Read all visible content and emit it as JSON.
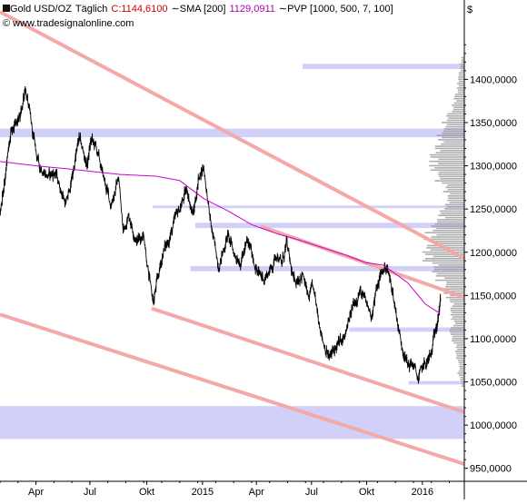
{
  "header": {
    "instrument": "Gold USD/OZ",
    "period": "Täglich",
    "price_label": "C:1144,6100",
    "sma_label": "SMA [200]",
    "sma_value": "1129,0911",
    "pvp_label": "PVP [1000, 500, 7, 100]",
    "currency": "$",
    "copyright": "© www.tradesignalonline.com"
  },
  "colors": {
    "price": "#000000",
    "sma": "#cc00cc",
    "channel": "#f4a8a8",
    "channel_dark": "#e27a7a",
    "band": "#c8c8f8",
    "profile": "#9a9a9a",
    "price_label": "#d00000"
  },
  "chart_data": {
    "type": "line",
    "title": "",
    "xlabel": "",
    "ylabel": "",
    "ylim": [
      935,
      1475
    ],
    "y_ticks": [
      "1400,0000",
      "1350,0000",
      "1300,0000",
      "1250,0000",
      "1200,0000",
      "1150,0000",
      "1100,0000",
      "1050,0000",
      "1000,0000",
      "950,0000"
    ],
    "y_tick_values": [
      1400,
      1350,
      1300,
      1250,
      1200,
      1150,
      1100,
      1050,
      1000,
      950
    ],
    "x_ticks": [
      "Apr",
      "Jul",
      "Okt",
      "2015",
      "Apr",
      "Jul",
      "Okt",
      "2016"
    ],
    "x_tick_index": [
      60,
      150,
      245,
      338,
      428,
      520,
      612,
      705
    ],
    "n_days": 775,
    "series": [
      {
        "kind": "price",
        "anchors_index": [
          0,
          18,
          34,
          42,
          55,
          65,
          80,
          92,
          110,
          118,
          132,
          145,
          152,
          160,
          172,
          185,
          198,
          205,
          215,
          228,
          240,
          248,
          256,
          265,
          272,
          282,
          296,
          300,
          312,
          322,
          333,
          340,
          350,
          356,
          365,
          372,
          380,
          392,
          402,
          412,
          418,
          430,
          442,
          455,
          462,
          470,
          478,
          490,
          505,
          515,
          522,
          530,
          540,
          550,
          560,
          575,
          590,
          600,
          608,
          620,
          628,
          636,
          645,
          655,
          668,
          680,
          690,
          698,
          705,
          712,
          720,
          728,
          735
        ],
        "anchors_value": [
          1248,
          1336,
          1356,
          1392,
          1335,
          1300,
          1288,
          1292,
          1255,
          1278,
          1332,
          1300,
          1330,
          1322,
          1288,
          1255,
          1286,
          1225,
          1243,
          1212,
          1222,
          1172,
          1142,
          1175,
          1200,
          1215,
          1246,
          1250,
          1273,
          1242,
          1291,
          1299,
          1240,
          1215,
          1185,
          1200,
          1220,
          1196,
          1190,
          1210,
          1205,
          1175,
          1170,
          1185,
          1200,
          1185,
          1210,
          1165,
          1175,
          1145,
          1160,
          1130,
          1095,
          1077,
          1090,
          1100,
          1140,
          1155,
          1145,
          1128,
          1155,
          1175,
          1185,
          1155,
          1100,
          1070,
          1070,
          1052,
          1067,
          1072,
          1082,
          1118,
          1144
        ]
      },
      {
        "kind": "sma",
        "name": "SMA [200]",
        "anchors_index": [
          0,
          60,
          120,
          200,
          260,
          300,
          340,
          380,
          420,
          460,
          500,
          540,
          580,
          610,
          640,
          680,
          710,
          735
        ],
        "anchors_value": [
          1305,
          1300,
          1296,
          1290,
          1288,
          1283,
          1262,
          1248,
          1232,
          1222,
          1214,
          1205,
          1196,
          1188,
          1185,
          1165,
          1140,
          1129
        ]
      }
    ],
    "channels": [
      {
        "from_index": 0,
        "from_value": 1478,
        "to_index": 775,
        "to_value": 1193,
        "color": "channel"
      },
      {
        "from_index": 0,
        "from_value": 1128,
        "to_index": 775,
        "to_value": 955,
        "color": "channel"
      },
      {
        "from_index": 253,
        "from_value": 1135,
        "to_index": 775,
        "to_value": 1015,
        "color": "channel"
      },
      {
        "from_index": 435,
        "from_value": 1230,
        "to_index": 775,
        "to_value": 1148,
        "color": "channel"
      }
    ],
    "bands": [
      {
        "low": 1412,
        "high": 1418,
        "from_index": 505
      },
      {
        "low": 1333,
        "high": 1343,
        "from_index": 0
      },
      {
        "low": 1251,
        "high": 1254,
        "from_index": 255
      },
      {
        "low": 1228,
        "high": 1234,
        "from_index": 326
      },
      {
        "low": 1178,
        "high": 1184,
        "from_index": 318
      },
      {
        "low": 1108,
        "high": 1113,
        "from_index": 583
      },
      {
        "low": 1047,
        "high": 1051,
        "from_index": 682
      },
      {
        "low": 984,
        "high": 1022,
        "from_index": 0
      }
    ],
    "volume_profile": {
      "levels": [
        1420,
        1400,
        1380,
        1360,
        1345,
        1335,
        1320,
        1305,
        1295,
        1285,
        1270,
        1255,
        1245,
        1230,
        1215,
        1200,
        1190,
        1180,
        1170,
        1160,
        1150,
        1140,
        1130,
        1120,
        1110,
        1100,
        1090,
        1080,
        1070,
        1060,
        1050
      ],
      "volumes": [
        1,
        2,
        3,
        5,
        8,
        8,
        9,
        12,
        11,
        9,
        7,
        6,
        8,
        11,
        12,
        13,
        12,
        10,
        9,
        7,
        6,
        5,
        4,
        4,
        5,
        4,
        3,
        3,
        2,
        2,
        1
      ]
    }
  }
}
